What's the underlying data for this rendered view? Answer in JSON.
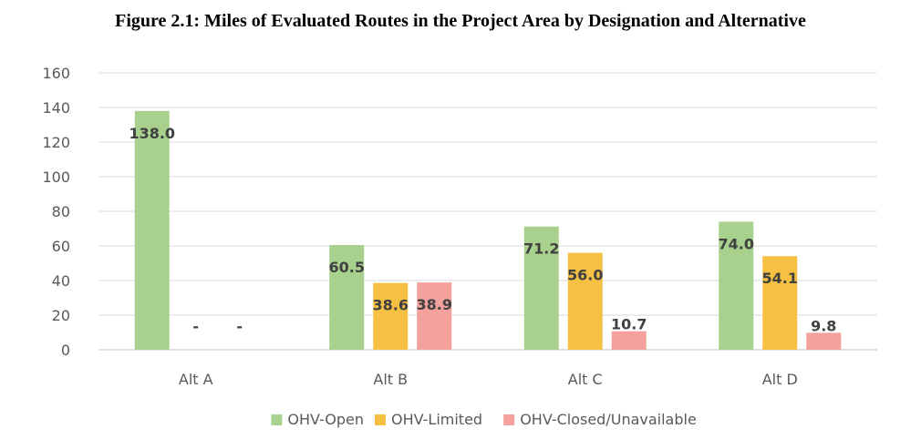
{
  "chart_data": {
    "type": "bar",
    "title": "Figure 2.1: Miles of Evaluated Routes in the Project Area by Designation and Alternative",
    "xlabel": "",
    "ylabel": "",
    "ylim": [
      0,
      160
    ],
    "yticks": [
      0,
      20,
      40,
      60,
      80,
      100,
      120,
      140,
      160
    ],
    "grid": true,
    "legend_position": "bottom",
    "categories": [
      "Alt A",
      "Alt B",
      "Alt C",
      "Alt D"
    ],
    "series": [
      {
        "name": "OHV-Open",
        "color": "#a9d18e",
        "values": [
          138.0,
          60.5,
          71.2,
          74.0
        ],
        "labels": [
          "138.0",
          "60.5",
          "71.2",
          "74.0"
        ]
      },
      {
        "name": "OHV-Limited",
        "color": "#f6c142",
        "values": [
          0,
          38.6,
          56.0,
          54.1
        ],
        "labels": [
          "-",
          "38.6",
          "56.0",
          "54.1"
        ]
      },
      {
        "name": "OHV-Closed/Unavailable",
        "color": "#f4a09c",
        "values": [
          0,
          38.9,
          10.7,
          9.8
        ],
        "labels": [
          "-",
          "38.9",
          "10.7",
          "9.8"
        ]
      }
    ]
  }
}
